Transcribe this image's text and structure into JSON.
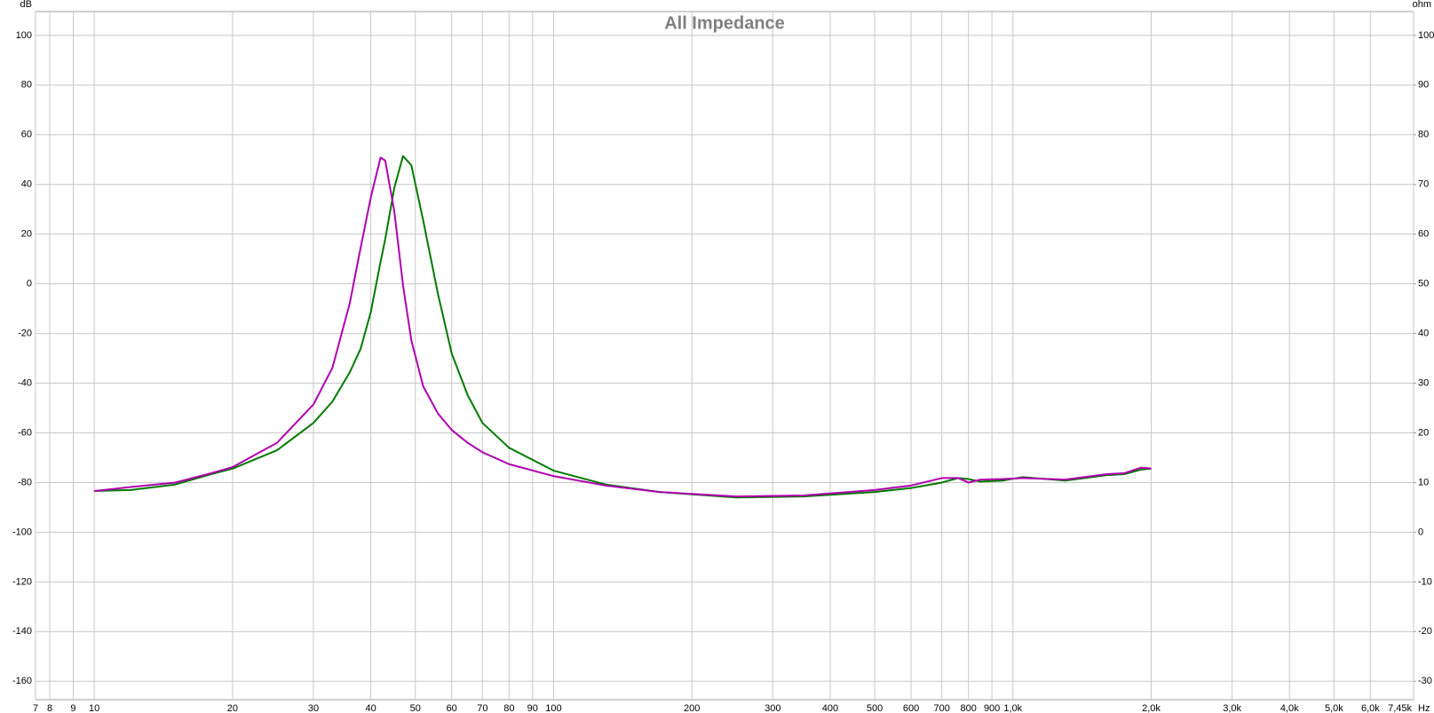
{
  "chart_data": {
    "type": "line",
    "title": "All Impedance",
    "y_unit": "dB",
    "y2_unit": "ohm",
    "x_unit": "Hz",
    "log_x": true,
    "grid": true,
    "xlim": [
      7.45,
      7450
    ],
    "xticks": [
      {
        "value": 7.45,
        "label": "7"
      },
      8,
      9,
      10,
      20,
      30,
      40,
      50,
      60,
      70,
      80,
      90,
      100,
      200,
      300,
      400,
      500,
      600,
      700,
      800,
      900,
      {
        "value": 1000,
        "label": "1,0k"
      },
      {
        "value": 2000,
        "label": "2,0k"
      },
      {
        "value": 3000,
        "label": "3,0k"
      },
      {
        "value": 4000,
        "label": "4,0k"
      },
      {
        "value": 5000,
        "label": "5,0k"
      },
      {
        "value": 6000,
        "label": "6,0k"
      },
      {
        "value": 7450,
        "label": "7,45k"
      }
    ],
    "ylim": [
      -167.4,
      109.6
    ],
    "yticks": [
      -160,
      -140,
      -120,
      -100,
      -80,
      -60,
      -40,
      -20,
      0,
      20,
      40,
      60,
      80,
      100
    ],
    "y2lim": [
      -33.7,
      104.8
    ],
    "y2ticks": [
      -30,
      -20,
      -10,
      0,
      10,
      20,
      30,
      40,
      50,
      60,
      70,
      80,
      90,
      100
    ],
    "x": [
      10,
      12,
      15,
      18,
      20,
      25,
      30,
      33,
      36,
      38,
      40,
      42,
      43,
      45,
      47,
      49,
      52,
      56,
      60,
      65,
      70,
      80,
      100,
      130,
      170,
      250,
      350,
      500,
      600,
      700,
      760,
      800,
      850,
      950,
      1050,
      1300,
      1600,
      1750,
      1900,
      2000
    ],
    "series": [
      {
        "name": "Green",
        "color": "#007a00",
        "axis": "y2",
        "values": [
          8.3,
          8.5,
          9.6,
          11.7,
          12.8,
          16.5,
          22,
          26.3,
          32.2,
          36.9,
          44.3,
          54.4,
          59,
          69.3,
          75.7,
          73.9,
          62.8,
          48,
          36,
          27.6,
          22,
          17,
          12.4,
          9.6,
          8.1,
          7.0,
          7.2,
          8.1,
          8.9,
          10,
          10.9,
          10.7,
          10.2,
          10.4,
          11.1,
          10.4,
          11.5,
          11.7,
          12.6,
          12.8
        ]
      },
      {
        "name": "Magenta",
        "color": "#b000b0",
        "axis": "y2",
        "values": [
          8.3,
          9.1,
          10,
          11.9,
          13.1,
          18,
          25.7,
          33.1,
          46.1,
          57.2,
          67.4,
          75.4,
          74.8,
          64.6,
          49.8,
          38.7,
          29.4,
          23.9,
          20.6,
          18,
          16.1,
          13.7,
          11.3,
          9.4,
          8.1,
          7.2,
          7.4,
          8.5,
          9.4,
          10.9,
          10.9,
          10,
          10.6,
          10.7,
          10.9,
          10.6,
          11.7,
          11.9,
          13,
          12.8
        ]
      }
    ]
  }
}
